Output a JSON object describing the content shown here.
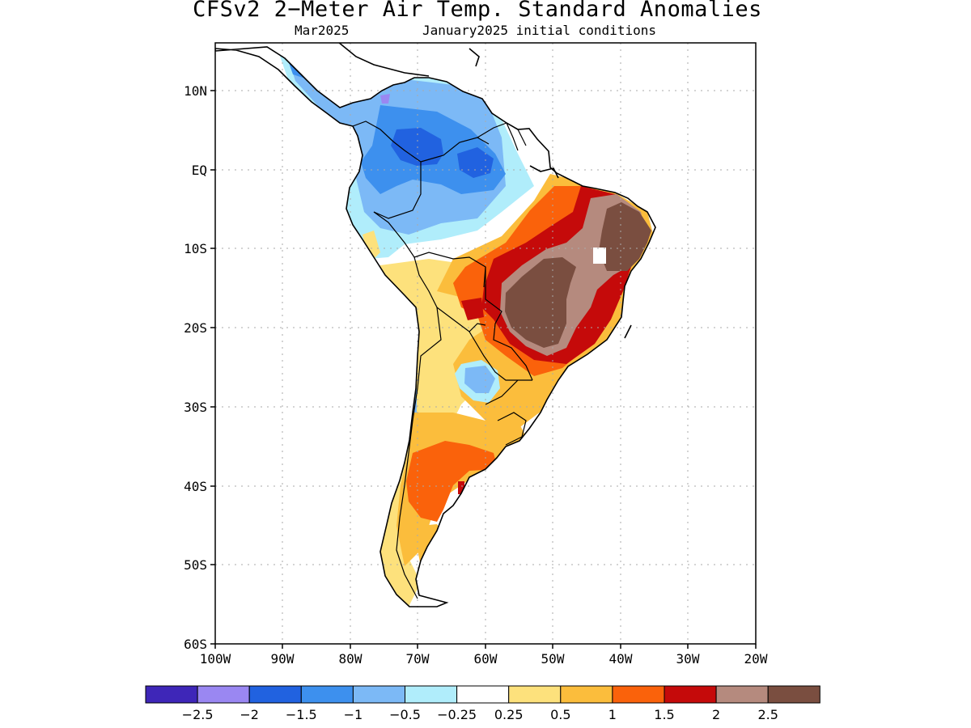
{
  "title": "CFSv2 2−Meter Air Temp. Standard Anomalies",
  "subtitle_left": "Mar2025",
  "subtitle_right": "January2025 initial conditions",
  "map": {
    "lon_range": [
      -100,
      -20
    ],
    "lat_range": [
      -60,
      15
    ],
    "grid": "dotted",
    "lat_labels": [
      "10N",
      "EQ",
      "10S",
      "20S",
      "30S",
      "40S",
      "50S",
      "60S"
    ],
    "lon_labels": [
      "100W",
      "90W",
      "80W",
      "70W",
      "60W",
      "50W",
      "40W",
      "30W",
      "20W"
    ]
  },
  "colorbar": {
    "colors": [
      "#3e26b8",
      "#9a87f2",
      "#2162e0",
      "#3d90ee",
      "#7cb9f6",
      "#b0edfb",
      "#ffffff",
      "#fde17c",
      "#fbbd3c",
      "#fa620b",
      "#c50a0a",
      "#b58a7e",
      "#7a4e40"
    ],
    "labels": [
      "−2.5",
      "−2",
      "−1.5",
      "−1",
      "−0.5",
      "−0.25",
      "0.25",
      "0.5",
      "1",
      "1.5",
      "2",
      "2.5"
    ]
  }
}
